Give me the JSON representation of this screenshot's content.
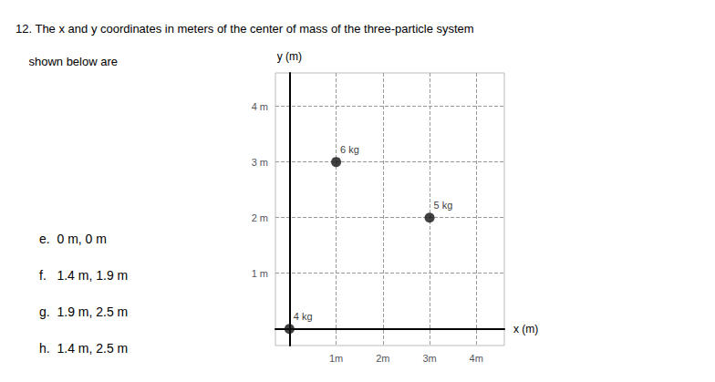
{
  "chart_data": {
    "type": "scatter",
    "title": "12. The x and y coordinates in meters of the center of mass of the three-particle system\n    shown below are",
    "x": [
      0,
      1,
      3
    ],
    "values": [
      0,
      3,
      2
    ],
    "labels": [
      "4 kg",
      "6 kg",
      "5 kg"
    ],
    "color": "#111111",
    "xlabel": "x (m)",
    "ylabel": "y (m)",
    "xlim": [
      -0.3,
      4.6
    ],
    "ylim": [
      -0.3,
      4.6
    ],
    "xticks": [
      {
        "value": 1,
        "label": "1m"
      },
      {
        "value": 2,
        "label": "2m"
      },
      {
        "value": 3,
        "label": "3m"
      },
      {
        "value": 4,
        "label": "4m"
      }
    ],
    "yticks": [
      {
        "value": 1,
        "label": "1 m"
      },
      {
        "value": 2,
        "label": "2 m"
      },
      {
        "value": 3,
        "label": "3 m"
      },
      {
        "value": 4,
        "label": "4 m"
      }
    ],
    "grid": true,
    "annotations": [
      "e.  0 m, 0 m",
      "f.   1.4 m, 1.9 m",
      "g.  1.9 m, 2.5 m",
      "h.  1.4 m, 2.5 m"
    ]
  }
}
